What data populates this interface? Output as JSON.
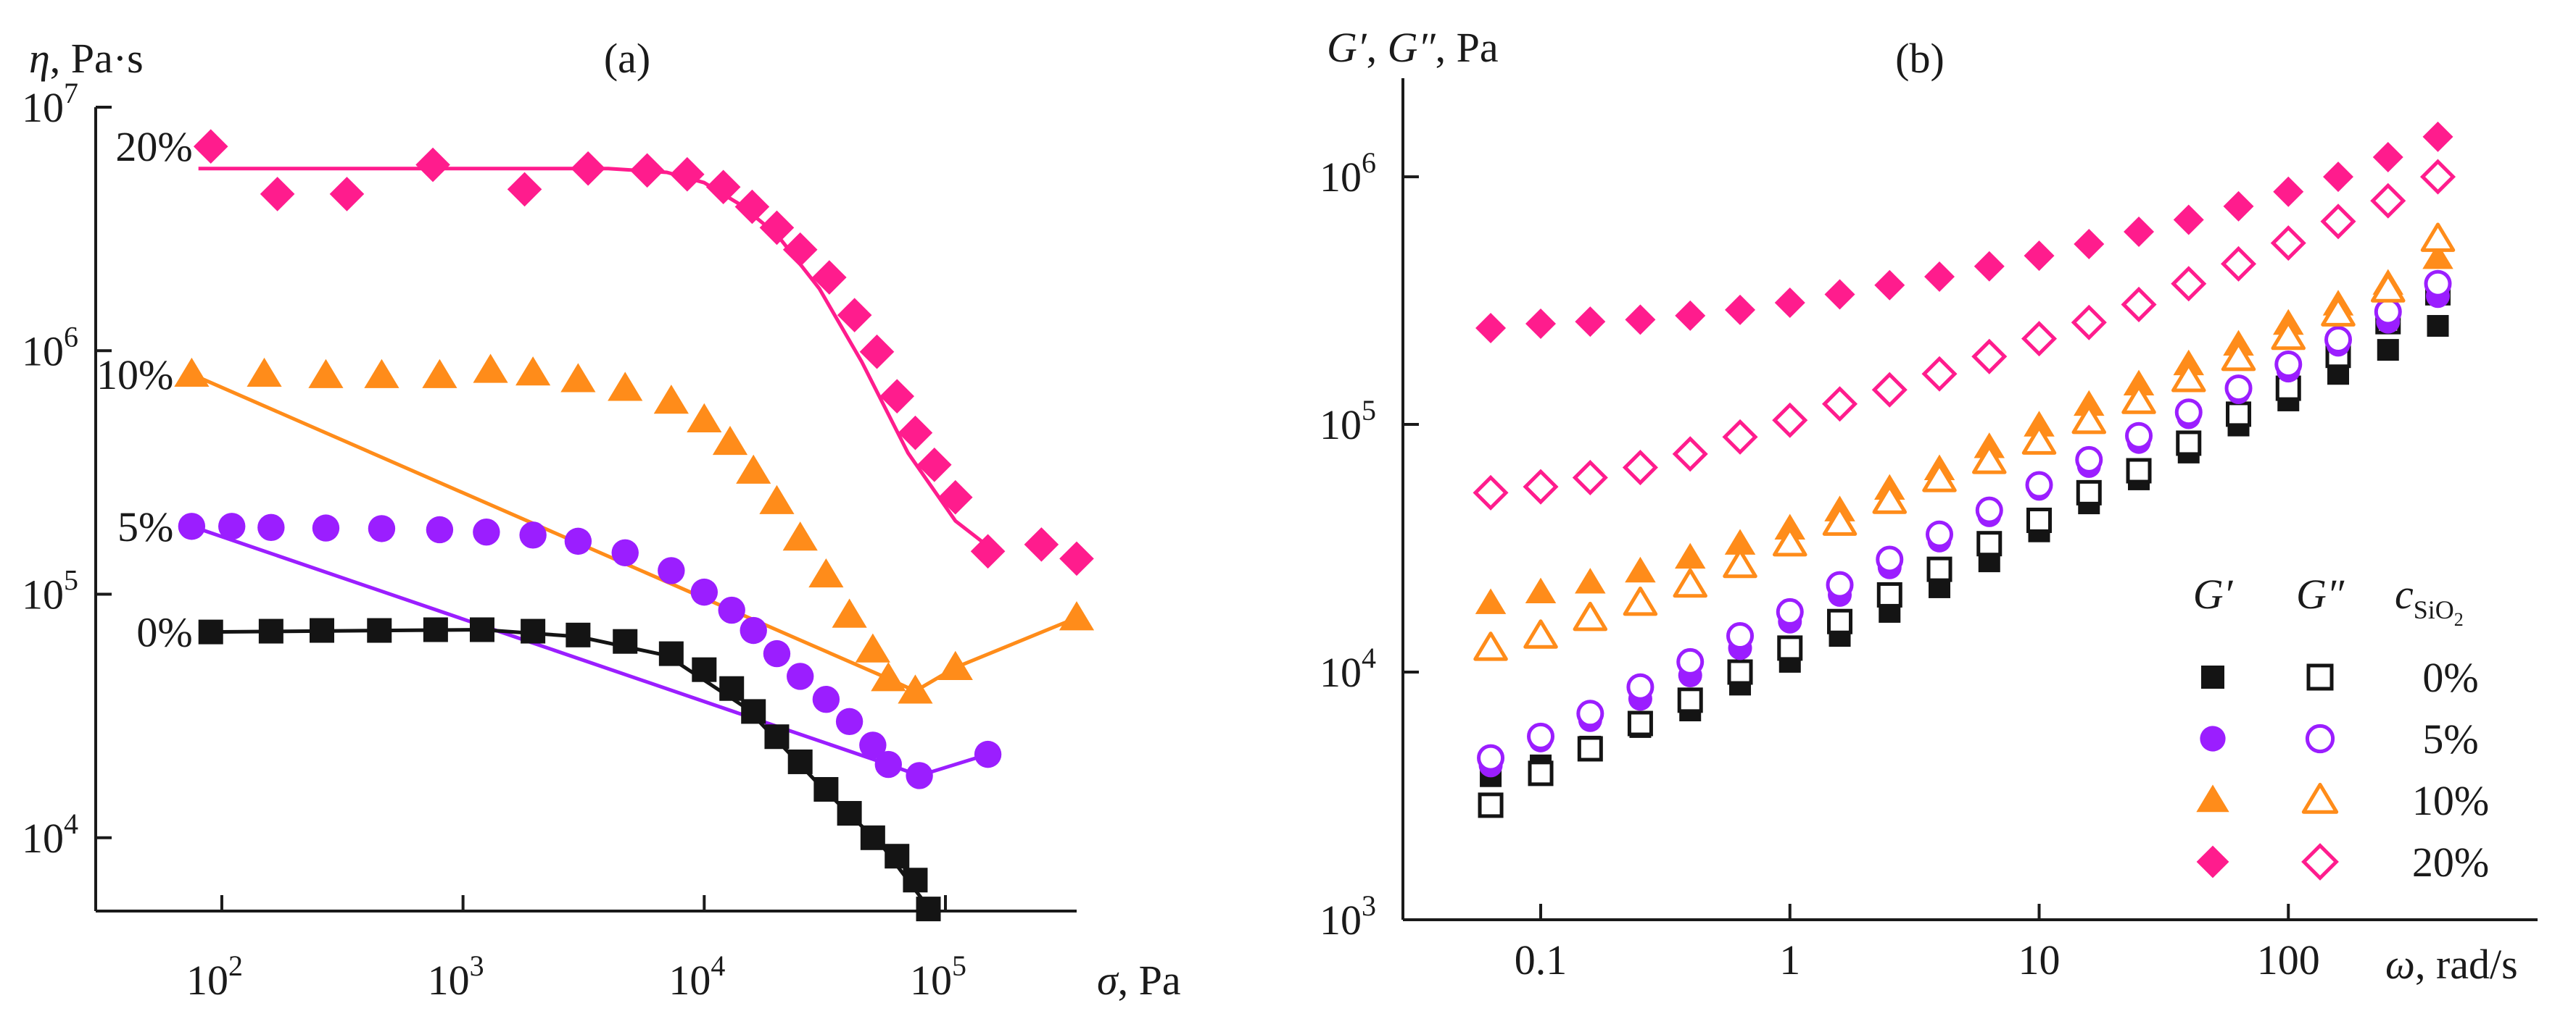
{
  "colors": {
    "s0": "#141414",
    "s5": "#9b1eff",
    "s10": "#ff8c1a",
    "s20": "#ff1c8d",
    "axis": "#1a1a1a"
  },
  "chart_data": [
    {
      "panel": "(a)",
      "type": "line",
      "scale": "log-log",
      "title": "(a)",
      "ylabel": {
        "italic": "η",
        "rest": ", Pa·s"
      },
      "xlabel": {
        "italic": "σ",
        "rest": ", Pa"
      },
      "xlim": [
        30,
        350000
      ],
      "ylim": [
        5000,
        10000000
      ],
      "xticks": [
        {
          "value": 100,
          "base": "10",
          "exp": "2"
        },
        {
          "value": 1000,
          "base": "10",
          "exp": "3"
        },
        {
          "value": 10000,
          "base": "10",
          "exp": "4"
        },
        {
          "value": 100000,
          "base": "10",
          "exp": "5"
        }
      ],
      "yticks": [
        {
          "value": 10000,
          "base": "10",
          "exp": "4"
        },
        {
          "value": 100000,
          "base": "10",
          "exp": "5"
        },
        {
          "value": 1000000,
          "base": "10",
          "exp": "6"
        },
        {
          "value": 10000000,
          "base": "10",
          "exp": "7"
        }
      ],
      "series": [
        {
          "name": "20%",
          "label": "20%",
          "color_key": "s20",
          "marker": "diamond",
          "x": [
            90,
            170,
            330,
            750,
            1800,
            3300,
            5800,
            8500,
            12000,
            15800,
            20000,
            25000,
            33000,
            42000,
            52000,
            63000,
            75000,
            90000,
            110000,
            150000,
            250000,
            350000
          ],
          "y": [
            6900000,
            4400000,
            4400000,
            5800000,
            4600000,
            5600000,
            5500000,
            5300000,
            4700000,
            3900000,
            3200000,
            2600000,
            2000000,
            1400000,
            990000,
            650000,
            460000,
            340000,
            250000,
            150000,
            160000,
            140000
          ],
          "fit_x": [
            80,
            4000,
            7000,
            10000,
            14000,
            20000,
            30000,
            45000,
            70000,
            110000,
            160000
          ],
          "fit_y": [
            5600000,
            5600000,
            5400000,
            4900000,
            4000000,
            3000000,
            1800000,
            900000,
            380000,
            200000,
            150000
          ]
        },
        {
          "name": "10%",
          "label": "10%",
          "color_key": "s10",
          "marker": "triangle",
          "x": [
            75,
            150,
            270,
            460,
            800,
            1300,
            1950,
            3000,
            4700,
            7300,
            10000,
            12800,
            16000,
            20000,
            25000,
            32000,
            40000,
            50000,
            58000,
            75000,
            110000,
            350000
          ],
          "y": [
            800000,
            800000,
            790000,
            790000,
            790000,
            830000,
            810000,
            760000,
            700000,
            620000,
            520000,
            420000,
            320000,
            240000,
            170000,
            120000,
            82000,
            59000,
            45000,
            40000,
            50000,
            80000
          ],
          "fit_x": [
            75,
            58000,
            75000,
            110000,
            350000
          ],
          "fit_y": [
            800000,
            45000,
            40000,
            50000,
            80000
          ]
        },
        {
          "name": "5%",
          "label": "5%",
          "color_key": "s5",
          "marker": "circle",
          "x": [
            75,
            110,
            160,
            270,
            460,
            800,
            1250,
            1950,
            3000,
            4700,
            7300,
            10000,
            13000,
            16000,
            20000,
            25000,
            32000,
            40000,
            50000,
            58000,
            78000,
            150000
          ],
          "y": [
            190000,
            190000,
            188000,
            187000,
            186000,
            184000,
            180000,
            175000,
            165000,
            148000,
            125000,
            102000,
            86000,
            71000,
            57000,
            46000,
            37000,
            30000,
            24000,
            20000,
            18000,
            22000
          ],
          "fit_x": [
            75,
            58000,
            78000,
            150000
          ],
          "fit_y": [
            190000,
            20000,
            18000,
            22000
          ]
        },
        {
          "name": "0%",
          "label": "0%",
          "color_key": "s0",
          "marker": "square",
          "x": [
            90,
            160,
            260,
            450,
            770,
            1200,
            1950,
            3000,
            4700,
            7300,
            10000,
            13000,
            16000,
            20000,
            25000,
            32000,
            40000,
            50000,
            63000,
            75000,
            85000
          ],
          "y": [
            70000,
            70500,
            71000,
            71000,
            71500,
            71500,
            70500,
            68000,
            64000,
            57000,
            49000,
            41000,
            33000,
            26000,
            20500,
            15800,
            12600,
            10000,
            8400,
            6700,
            5100
          ],
          "fit_x": [
            90,
            1200,
            3000,
            7000,
            15000,
            30000,
            55000,
            80000
          ],
          "fit_y": [
            70000,
            71500,
            67000,
            56000,
            34000,
            16500,
            9200,
            5600
          ]
        }
      ]
    },
    {
      "panel": "(b)",
      "type": "scatter",
      "scale": "log-log",
      "title": "(b)",
      "ylabel": {
        "g1": "G′",
        "sep": ", ",
        "g2": "G″",
        "rest": ", Pa"
      },
      "xlabel": {
        "italic": "ω",
        "rest": ", rad/s"
      },
      "xlim": [
        0.028,
        1000
      ],
      "ylim": [
        1000,
        2500000
      ],
      "xticks": [
        {
          "value": 0.1,
          "label": "0.1"
        },
        {
          "value": 1,
          "label": "1"
        },
        {
          "value": 10,
          "label": "10"
        },
        {
          "value": 100,
          "label": "100"
        }
      ],
      "yticks": [
        {
          "value": 1000,
          "base": "10",
          "exp": "3"
        },
        {
          "value": 10000,
          "base": "10",
          "exp": "4"
        },
        {
          "value": 100000,
          "base": "10",
          "exp": "5"
        },
        {
          "value": 1000000,
          "base": "10",
          "exp": "6"
        }
      ],
      "x": [
        0.063,
        0.1,
        0.158,
        0.251,
        0.398,
        0.631,
        1,
        1.585,
        2.512,
        3.981,
        6.31,
        10,
        15.85,
        25.12,
        39.81,
        63.1,
        100,
        158.5,
        251.2,
        398.1
      ],
      "legend": {
        "position": "bottom-right",
        "header_g1": "G′",
        "header_g2": "G″",
        "header_c_main": "c",
        "header_c_sub": "SiO",
        "header_c_sub2": "2",
        "rows": [
          "0%",
          "5%",
          "10%",
          "20%"
        ]
      },
      "series": [
        {
          "name": "G′ 0%",
          "color_key": "s0",
          "marker": "square",
          "filled": true,
          "y": [
            3800,
            4200,
            5000,
            6000,
            7000,
            8900,
            11000,
            14000,
            17500,
            22000,
            28000,
            37000,
            48000,
            60000,
            77000,
            99000,
            125000,
            160000,
            200000,
            250000
          ]
        },
        {
          "name": "G″ 0%",
          "color_key": "s0",
          "marker": "square",
          "filled": false,
          "y": [
            2900,
            3900,
            4900,
            6200,
            7700,
            10000,
            12500,
            16000,
            20500,
            26000,
            33000,
            41000,
            53000,
            65000,
            84000,
            110000,
            140000,
            190000,
            260000,
            340000
          ]
        },
        {
          "name": "G′ 5%",
          "color_key": "s5",
          "marker": "circle",
          "filled": true,
          "y": [
            4200,
            5300,
            6400,
            7800,
            9700,
            12500,
            16000,
            20500,
            26500,
            34000,
            43000,
            55000,
            68000,
            85000,
            107000,
            135000,
            165000,
            210000,
            260000,
            330000
          ]
        },
        {
          "name": "G″ 5%",
          "color_key": "s5",
          "marker": "circle",
          "filled": false,
          "y": [
            4500,
            5500,
            6800,
            8700,
            11000,
            14000,
            17500,
            22500,
            28500,
            36000,
            45000,
            57000,
            72000,
            90000,
            112000,
            140000,
            175000,
            220000,
            285000,
            370000
          ]
        },
        {
          "name": "G′ 10%",
          "color_key": "s10",
          "marker": "triangle",
          "filled": true,
          "y": [
            19000,
            21000,
            23000,
            25500,
            29000,
            33000,
            38000,
            45000,
            55000,
            66000,
            81000,
            99000,
            120000,
            145000,
            175000,
            210000,
            255000,
            305000,
            370000,
            470000
          ]
        },
        {
          "name": "G″ 10%",
          "color_key": "s10",
          "marker": "triangle",
          "filled": false,
          "y": [
            12500,
            14000,
            16500,
            19000,
            22500,
            27000,
            33000,
            40000,
            49000,
            60000,
            71000,
            85000,
            103000,
            124000,
            152000,
            185000,
            225000,
            280000,
            350000,
            560000
          ]
        },
        {
          "name": "G′ 20%",
          "color_key": "s20",
          "marker": "diamond",
          "filled": true,
          "y": [
            245000,
            255000,
            260000,
            265000,
            275000,
            290000,
            310000,
            335000,
            365000,
            395000,
            435000,
            480000,
            535000,
            600000,
            670000,
            760000,
            870000,
            1000000,
            1200000,
            1450000
          ]
        },
        {
          "name": "G″ 20%",
          "color_key": "s20",
          "marker": "diamond",
          "filled": false,
          "y": [
            53000,
            56000,
            61000,
            67000,
            76000,
            89000,
            104000,
            121000,
            138000,
            160000,
            188000,
            222000,
            258000,
            305000,
            370000,
            445000,
            540000,
            660000,
            800000,
            1000000
          ]
        }
      ]
    }
  ]
}
